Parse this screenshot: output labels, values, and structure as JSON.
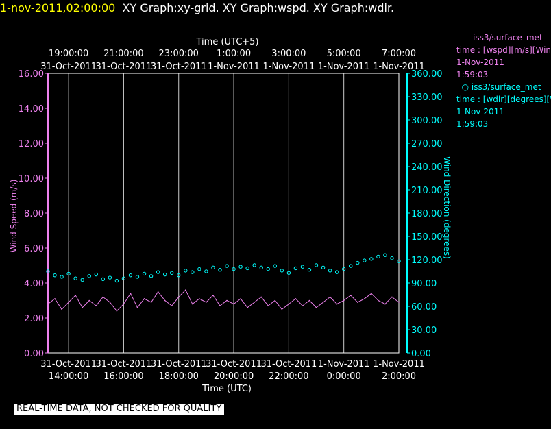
{
  "header": {
    "timestamp": "1-nov-2011,02:00:00",
    "graphs": "XY Graph:xy-grid.  XY Graph:wspd.  XY Graph:wdir."
  },
  "legend": {
    "wspd": {
      "source": "iss3/surface_met",
      "field": "time : [wspd][m/s][Wind Speed]",
      "date": "1-Nov-2011",
      "time": "1:59:03"
    },
    "wdir": {
      "source": "iss3/surface_met",
      "field": "time : [wdir][degrees][Wind Direction]",
      "date": "1-Nov-2011",
      "time": "1:59:03"
    }
  },
  "disclaimer": "REAL-TIME DATA, NOT CHECKED FOR QUALITY",
  "colors": {
    "wspd": "#ee82ee",
    "wdir": "#00ffff",
    "title": "#ffff00",
    "grid": "#ffffff"
  },
  "chart_data": {
    "type": "line",
    "title": "XY Graph:wspd / XY Graph:wdir",
    "grid": true,
    "x_bottom": {
      "label": "Time (UTC)",
      "range": [
        "2011-10-31 13:15",
        "2011-11-01 02:00"
      ],
      "ticks": [
        {
          "time": "2011-10-31 14:00",
          "date": "31-Oct-2011",
          "clock": "14:00:00"
        },
        {
          "time": "2011-10-31 16:00",
          "date": "31-Oct-2011",
          "clock": "16:00:00"
        },
        {
          "time": "2011-10-31 18:00",
          "date": "31-Oct-2011",
          "clock": "18:00:00"
        },
        {
          "time": "2011-10-31 20:00",
          "date": "31-Oct-2011",
          "clock": "20:00:00"
        },
        {
          "time": "2011-10-31 22:00",
          "date": "31-Oct-2011",
          "clock": "22:00:00"
        },
        {
          "time": "2011-11-01 00:00",
          "date": "1-Nov-2011",
          "clock": "0:00:00"
        },
        {
          "time": "2011-11-01 02:00",
          "date": "1-Nov-2011",
          "clock": "2:00:00"
        }
      ]
    },
    "x_top": {
      "label": "Time (UTC+5)",
      "ticks": [
        {
          "time": "2011-10-31 14:00",
          "date": "31-Oct-2011",
          "clock": "19:00:00"
        },
        {
          "time": "2011-10-31 16:00",
          "date": "31-Oct-2011",
          "clock": "21:00:00"
        },
        {
          "time": "2011-10-31 18:00",
          "date": "31-Oct-2011",
          "clock": "23:00:00"
        },
        {
          "time": "2011-10-31 20:00",
          "date": "1-Nov-2011",
          "clock": "1:00:00"
        },
        {
          "time": "2011-10-31 22:00",
          "date": "1-Nov-2011",
          "clock": "3:00:00"
        },
        {
          "time": "2011-11-01 00:00",
          "date": "1-Nov-2011",
          "clock": "5:00:00"
        },
        {
          "time": "2011-11-01 02:00",
          "date": "1-Nov-2011",
          "clock": "7:00:00"
        }
      ]
    },
    "y_left": {
      "label": "Wind Speed (m/s)",
      "range": [
        0,
        16
      ],
      "ticks": [
        "0.00",
        "2.00",
        "4.00",
        "6.00",
        "8.00",
        "10.00",
        "12.00",
        "14.00",
        "16.00"
      ]
    },
    "y_right": {
      "label": "Wind Direction (degrees)",
      "range": [
        0,
        360
      ],
      "ticks": [
        "0.00",
        "30.00",
        "60.00",
        "90.00",
        "120.00",
        "150.00",
        "180.00",
        "210.00",
        "240.00",
        "270.00",
        "300.00",
        "330.00",
        "360.00"
      ]
    },
    "series": [
      {
        "name": "iss3/surface_met",
        "field": "wspd",
        "axis": "left",
        "style": "line",
        "x": [
          "2011-10-31 13:15",
          "2011-10-31 13:30",
          "2011-10-31 13:45",
          "2011-10-31 14:00",
          "2011-10-31 14:15",
          "2011-10-31 14:30",
          "2011-10-31 14:45",
          "2011-10-31 15:00",
          "2011-10-31 15:15",
          "2011-10-31 15:30",
          "2011-10-31 15:45",
          "2011-10-31 16:00",
          "2011-10-31 16:15",
          "2011-10-31 16:30",
          "2011-10-31 16:45",
          "2011-10-31 17:00",
          "2011-10-31 17:15",
          "2011-10-31 17:30",
          "2011-10-31 17:45",
          "2011-10-31 18:00",
          "2011-10-31 18:15",
          "2011-10-31 18:30",
          "2011-10-31 18:45",
          "2011-10-31 19:00",
          "2011-10-31 19:15",
          "2011-10-31 19:30",
          "2011-10-31 19:45",
          "2011-10-31 20:00",
          "2011-10-31 20:15",
          "2011-10-31 20:30",
          "2011-10-31 20:45",
          "2011-10-31 21:00",
          "2011-10-31 21:15",
          "2011-10-31 21:30",
          "2011-10-31 21:45",
          "2011-10-31 22:00",
          "2011-10-31 22:15",
          "2011-10-31 22:30",
          "2011-10-31 22:45",
          "2011-10-31 23:00",
          "2011-10-31 23:15",
          "2011-10-31 23:30",
          "2011-10-31 23:45",
          "2011-11-01 00:00",
          "2011-11-01 00:15",
          "2011-11-01 00:30",
          "2011-11-01 00:45",
          "2011-11-01 01:00",
          "2011-11-01 01:15",
          "2011-11-01 01:30",
          "2011-11-01 01:45",
          "2011-11-01 02:00"
        ],
        "values": [
          2.8,
          3.1,
          2.5,
          2.9,
          3.3,
          2.6,
          3.0,
          2.7,
          3.2,
          2.9,
          2.4,
          2.8,
          3.4,
          2.6,
          3.1,
          2.9,
          3.5,
          3.0,
          2.7,
          3.2,
          3.6,
          2.8,
          3.1,
          2.9,
          3.3,
          2.7,
          3.0,
          2.8,
          3.1,
          2.6,
          2.9,
          3.2,
          2.7,
          3.0,
          2.5,
          2.8,
          3.1,
          2.7,
          3.0,
          2.6,
          2.9,
          3.2,
          2.8,
          3.0,
          3.3,
          2.9,
          3.1,
          3.4,
          3.0,
          2.8,
          3.2,
          2.9
        ]
      },
      {
        "name": "iss3/surface_met",
        "field": "wdir",
        "axis": "right",
        "style": "scatter",
        "x": [
          "2011-10-31 13:15",
          "2011-10-31 13:30",
          "2011-10-31 13:45",
          "2011-10-31 14:00",
          "2011-10-31 14:15",
          "2011-10-31 14:30",
          "2011-10-31 14:45",
          "2011-10-31 15:00",
          "2011-10-31 15:15",
          "2011-10-31 15:30",
          "2011-10-31 15:45",
          "2011-10-31 16:00",
          "2011-10-31 16:15",
          "2011-10-31 16:30",
          "2011-10-31 16:45",
          "2011-10-31 17:00",
          "2011-10-31 17:15",
          "2011-10-31 17:30",
          "2011-10-31 17:45",
          "2011-10-31 18:00",
          "2011-10-31 18:15",
          "2011-10-31 18:30",
          "2011-10-31 18:45",
          "2011-10-31 19:00",
          "2011-10-31 19:15",
          "2011-10-31 19:30",
          "2011-10-31 19:45",
          "2011-10-31 20:00",
          "2011-10-31 20:15",
          "2011-10-31 20:30",
          "2011-10-31 20:45",
          "2011-10-31 21:00",
          "2011-10-31 21:15",
          "2011-10-31 21:30",
          "2011-10-31 21:45",
          "2011-10-31 22:00",
          "2011-10-31 22:15",
          "2011-10-31 22:30",
          "2011-10-31 22:45",
          "2011-10-31 23:00",
          "2011-10-31 23:15",
          "2011-10-31 23:30",
          "2011-10-31 23:45",
          "2011-11-01 00:00",
          "2011-11-01 00:15",
          "2011-11-01 00:30",
          "2011-11-01 00:45",
          "2011-11-01 01:00",
          "2011-11-01 01:15",
          "2011-11-01 01:30",
          "2011-11-01 01:45",
          "2011-11-01 02:00"
        ],
        "values": [
          105,
          100,
          98,
          102,
          96,
          94,
          99,
          101,
          95,
          97,
          93,
          96,
          100,
          98,
          102,
          99,
          104,
          101,
          103,
          100,
          106,
          104,
          108,
          105,
          110,
          107,
          112,
          108,
          111,
          109,
          113,
          110,
          108,
          112,
          106,
          103,
          109,
          111,
          107,
          113,
          110,
          106,
          104,
          108,
          112,
          116,
          119,
          121,
          124,
          126,
          122,
          118
        ]
      }
    ]
  }
}
